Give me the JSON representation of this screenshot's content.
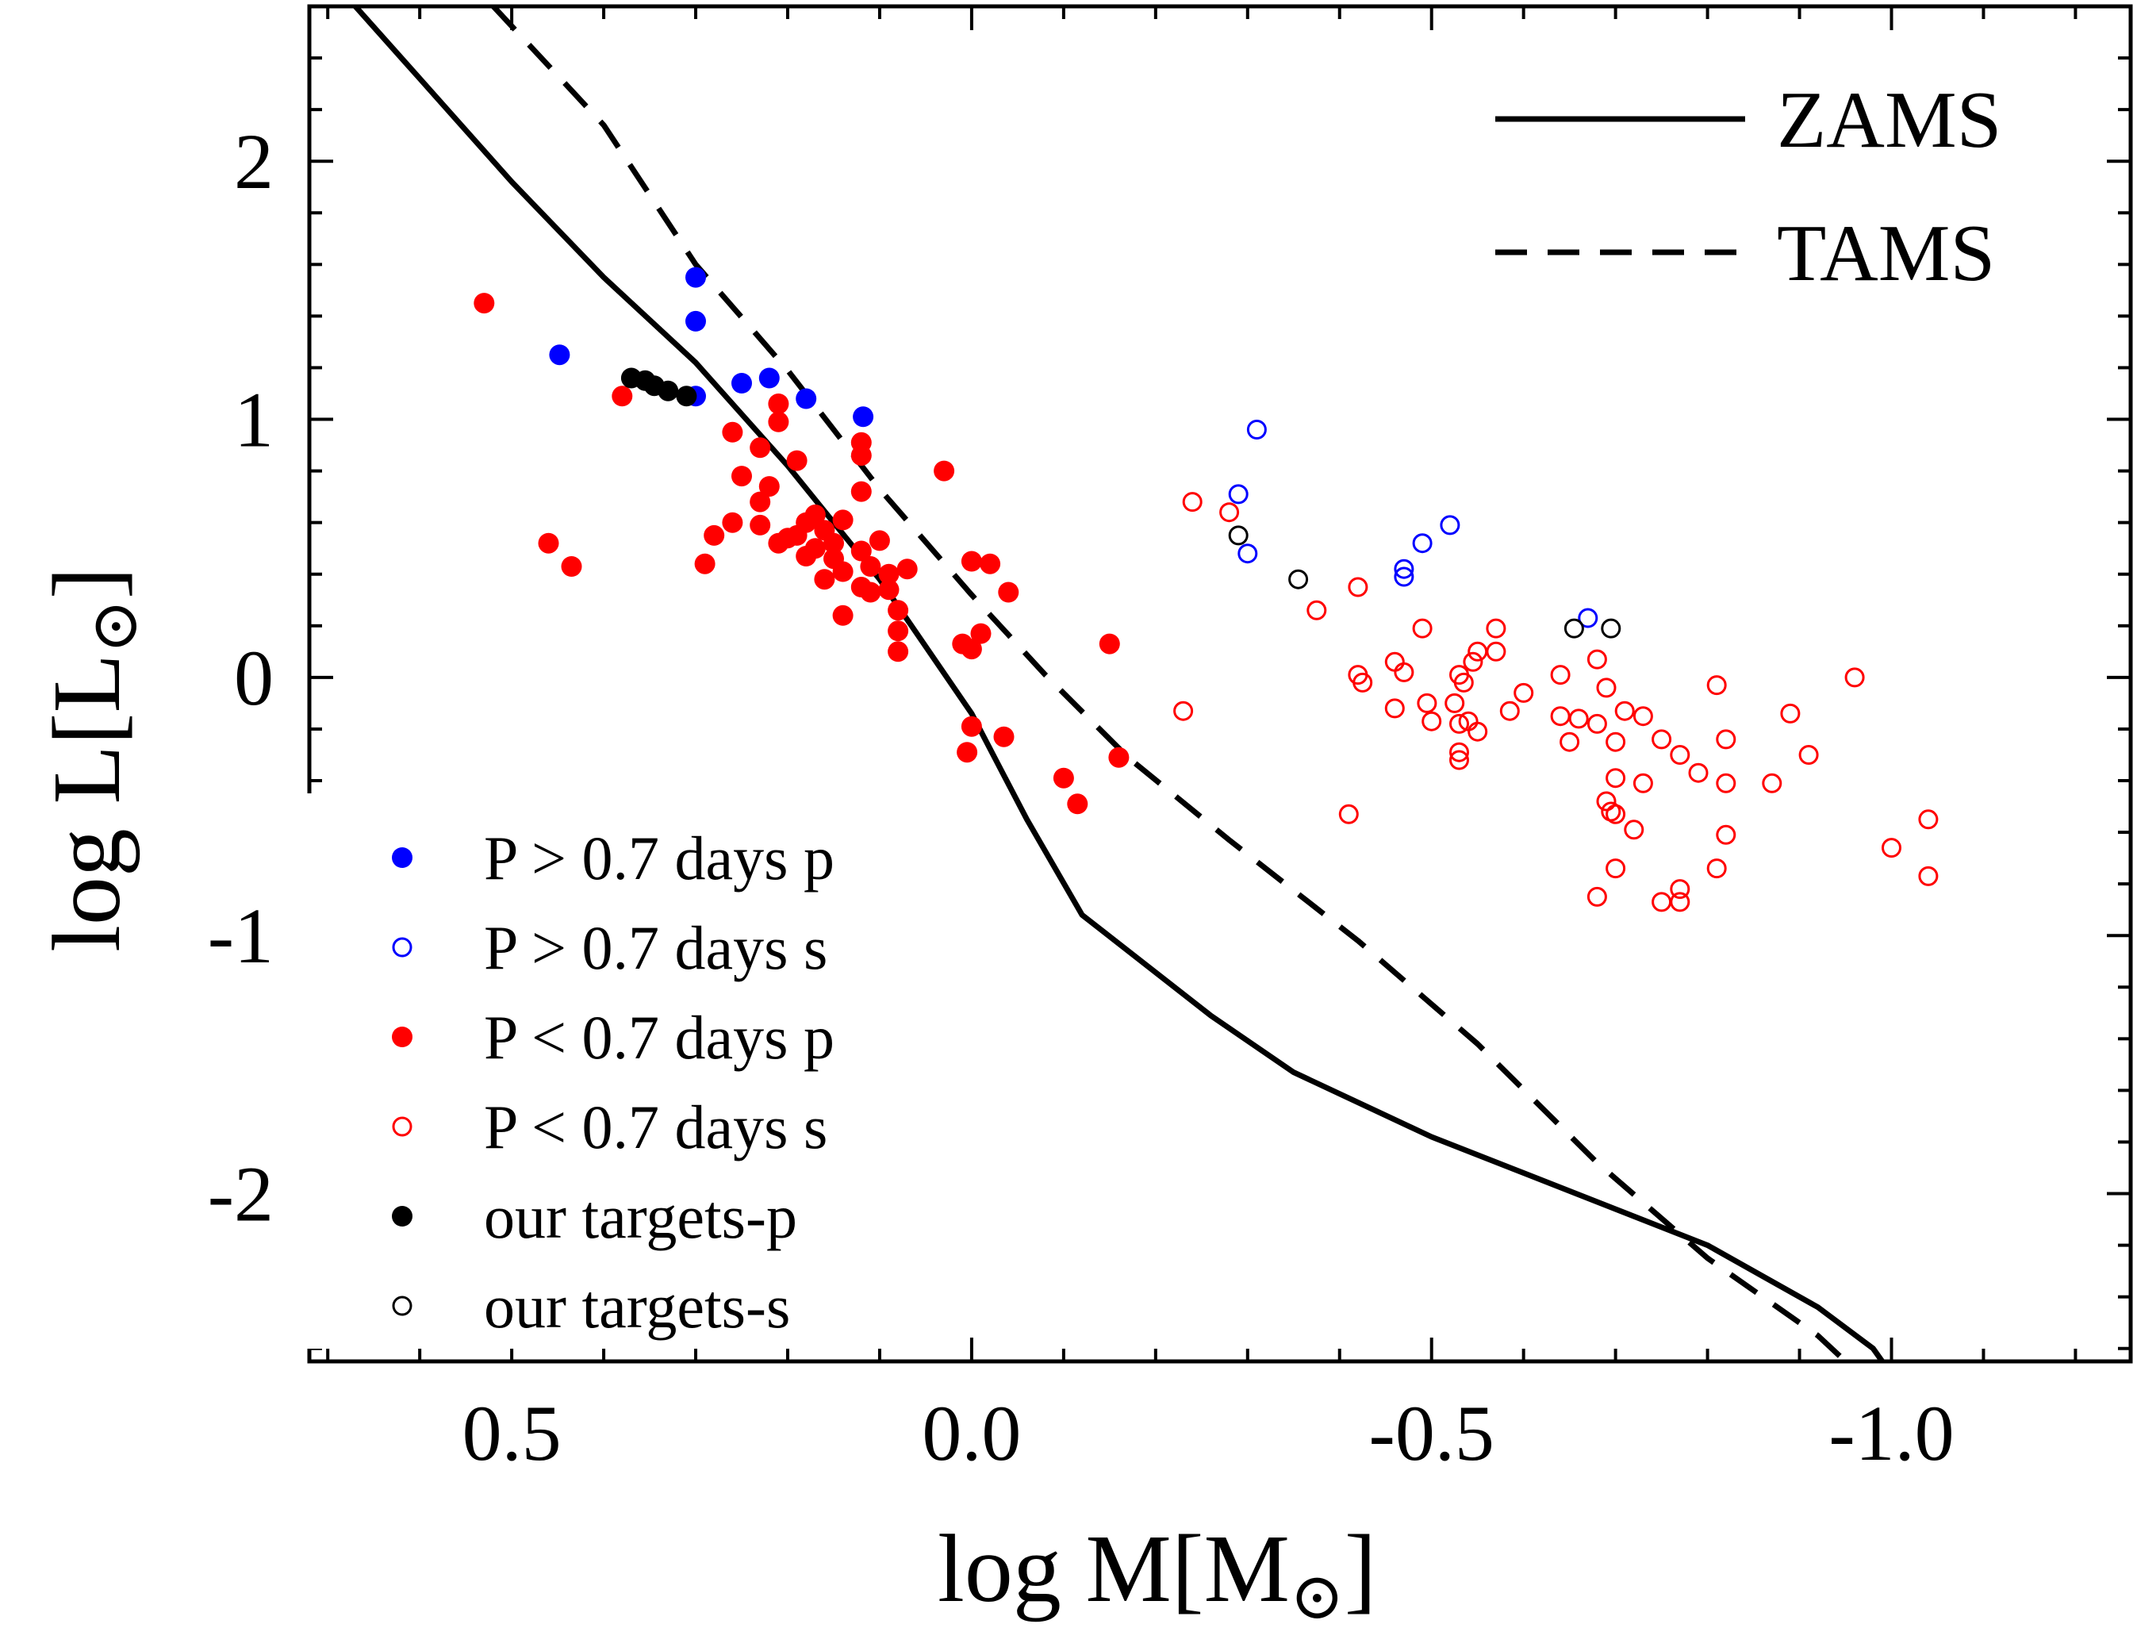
{
  "chart_data": {
    "type": "scatter",
    "title": "",
    "xlabel": "log M[M",
    "xlabel_sub": "⊙",
    "xlabel_close": "]",
    "ylabel": "log L[L",
    "ylabel_sub": "⊙",
    "ylabel_close": "]",
    "xlim": [
      0.72,
      -1.26
    ],
    "ylim": [
      -2.65,
      2.6
    ],
    "x_ticks": [
      0.5,
      0.0,
      -0.5,
      -1.0
    ],
    "x_tick_labels": [
      "0.5",
      "0.0",
      "-0.5",
      "-1.0"
    ],
    "y_ticks": [
      2,
      1,
      0,
      -1,
      -2
    ],
    "y_tick_labels": [
      "2",
      "1",
      "0",
      "-1",
      "-2"
    ],
    "lines": [
      {
        "name": "ZAMS",
        "style": "solid",
        "points": [
          [
            0.67,
            2.6
          ],
          [
            0.6,
            2.32
          ],
          [
            0.5,
            1.92
          ],
          [
            0.4,
            1.55
          ],
          [
            0.3,
            1.22
          ],
          [
            0.2,
            0.82
          ],
          [
            0.1,
            0.38
          ],
          [
            0.0,
            -0.14
          ],
          [
            -0.06,
            -0.55
          ],
          [
            -0.12,
            -0.92
          ],
          [
            -0.26,
            -1.31
          ],
          [
            -0.35,
            -1.53
          ],
          [
            -0.5,
            -1.78
          ],
          [
            -0.6,
            -1.92
          ],
          [
            -0.6,
            -1.92
          ],
          [
            -0.8,
            -2.2
          ],
          [
            -0.92,
            -2.44
          ],
          [
            -0.98,
            -2.6
          ],
          [
            -0.99,
            -2.65
          ]
        ]
      },
      {
        "name": "TAMS",
        "style": "dashed",
        "points": [
          [
            0.52,
            2.6
          ],
          [
            0.4,
            2.14
          ],
          [
            0.3,
            1.6
          ],
          [
            0.2,
            1.19
          ],
          [
            0.1,
            0.73
          ],
          [
            0.0,
            0.32
          ],
          [
            -0.08,
            0.01
          ],
          [
            -0.17,
            -0.31
          ],
          [
            -0.28,
            -0.63
          ],
          [
            -0.42,
            -1.02
          ],
          [
            -0.55,
            -1.42
          ],
          [
            -0.68,
            -1.88
          ],
          [
            -0.8,
            -2.25
          ],
          [
            -0.92,
            -2.55
          ],
          [
            -0.95,
            -2.65
          ]
        ]
      }
    ],
    "series": [
      {
        "name": "P > 0.7 days p",
        "color": "#0000ff",
        "filled": true,
        "points": [
          [
            0.3,
            1.55
          ],
          [
            0.3,
            1.38
          ],
          [
            0.448,
            1.25
          ],
          [
            0.3,
            1.09
          ],
          [
            0.25,
            1.14
          ],
          [
            0.22,
            1.16
          ],
          [
            0.18,
            1.08
          ],
          [
            0.118,
            1.01
          ]
        ]
      },
      {
        "name": "P > 0.7 days s",
        "color": "#0000ff",
        "filled": false,
        "points": [
          [
            -0.31,
            0.96
          ],
          [
            -0.29,
            0.71
          ],
          [
            -0.3,
            0.48
          ],
          [
            -0.47,
            0.42
          ],
          [
            -0.49,
            0.52
          ],
          [
            -0.52,
            0.59
          ],
          [
            -0.47,
            0.39
          ],
          [
            -0.67,
            0.23
          ]
        ]
      },
      {
        "name": "P < 0.7 days p",
        "color": "#ff0000",
        "filled": true,
        "points": [
          [
            0.53,
            1.45
          ],
          [
            0.38,
            1.09
          ],
          [
            0.21,
            1.06
          ],
          [
            0.21,
            0.99
          ],
          [
            0.26,
            0.95
          ],
          [
            0.12,
            0.91
          ],
          [
            0.23,
            0.89
          ],
          [
            0.12,
            0.86
          ],
          [
            0.19,
            0.84
          ],
          [
            0.25,
            0.78
          ],
          [
            0.03,
            0.8
          ],
          [
            0.22,
            0.74
          ],
          [
            0.12,
            0.72
          ],
          [
            0.23,
            0.68
          ],
          [
            0.17,
            0.63
          ],
          [
            0.14,
            0.61
          ],
          [
            0.18,
            0.6
          ],
          [
            0.26,
            0.6
          ],
          [
            0.23,
            0.59
          ],
          [
            0.16,
            0.57
          ],
          [
            0.19,
            0.55
          ],
          [
            0.2,
            0.54
          ],
          [
            0.28,
            0.55
          ],
          [
            0.21,
            0.52
          ],
          [
            0.1,
            0.53
          ],
          [
            0.15,
            0.52
          ],
          [
            0.17,
            0.5
          ],
          [
            0.12,
            0.49
          ],
          [
            0.18,
            0.47
          ],
          [
            0.15,
            0.46
          ],
          [
            0.0,
            0.45
          ],
          [
            -0.02,
            0.44
          ],
          [
            0.29,
            0.44
          ],
          [
            0.14,
            0.41
          ],
          [
            0.11,
            0.43
          ],
          [
            0.07,
            0.42
          ],
          [
            0.09,
            0.4
          ],
          [
            0.16,
            0.38
          ],
          [
            0.46,
            0.52
          ],
          [
            0.435,
            0.43
          ],
          [
            0.12,
            0.35
          ],
          [
            0.09,
            0.34
          ],
          [
            0.11,
            0.33
          ],
          [
            -0.04,
            0.33
          ],
          [
            0.08,
            0.26
          ],
          [
            0.14,
            0.24
          ],
          [
            0.08,
            0.18
          ],
          [
            -0.01,
            0.17
          ],
          [
            0.01,
            0.13
          ],
          [
            -0.15,
            0.13
          ],
          [
            0.0,
            0.11
          ],
          [
            0.08,
            0.1
          ],
          [
            0.0,
            -0.19
          ],
          [
            -0.035,
            -0.23
          ],
          [
            0.005,
            -0.29
          ],
          [
            -0.16,
            -0.31
          ],
          [
            -0.1,
            -0.39
          ],
          [
            -0.115,
            -0.49
          ]
        ]
      },
      {
        "name": "P < 0.7 days s",
        "color": "#ff0000",
        "filled": false,
        "points": [
          [
            -0.24,
            0.68
          ],
          [
            -0.28,
            0.64
          ],
          [
            -0.42,
            0.35
          ],
          [
            -0.375,
            0.26
          ],
          [
            -0.49,
            0.19
          ],
          [
            -0.57,
            0.19
          ],
          [
            -0.55,
            0.1
          ],
          [
            -0.57,
            0.1
          ],
          [
            -0.545,
            0.06
          ],
          [
            -0.46,
            0.06
          ],
          [
            -0.47,
            0.02
          ],
          [
            -0.53,
            0.01
          ],
          [
            -0.42,
            0.01
          ],
          [
            -0.64,
            0.01
          ],
          [
            -0.96,
            0.0
          ],
          [
            -0.425,
            -0.02
          ],
          [
            -0.535,
            -0.02
          ],
          [
            -0.81,
            -0.03
          ],
          [
            -0.6,
            -0.06
          ],
          [
            -0.69,
            -0.04
          ],
          [
            -0.68,
            0.07
          ],
          [
            -0.495,
            -0.1
          ],
          [
            -0.525,
            -0.1
          ],
          [
            -0.585,
            -0.13
          ],
          [
            -0.71,
            -0.13
          ],
          [
            -0.23,
            -0.13
          ],
          [
            -0.46,
            -0.12
          ],
          [
            -0.54,
            -0.17
          ],
          [
            -0.73,
            -0.15
          ],
          [
            -0.89,
            -0.14
          ],
          [
            -0.64,
            -0.15
          ],
          [
            -0.5,
            -0.17
          ],
          [
            -0.53,
            -0.18
          ],
          [
            -0.66,
            -0.16
          ],
          [
            -0.68,
            -0.18
          ],
          [
            -0.55,
            -0.21
          ],
          [
            -0.7,
            -0.25
          ],
          [
            -0.75,
            -0.24
          ],
          [
            -0.82,
            -0.24
          ],
          [
            -0.65,
            -0.25
          ],
          [
            -0.53,
            -0.29
          ],
          [
            -0.77,
            -0.3
          ],
          [
            -0.91,
            -0.3
          ],
          [
            -0.53,
            -0.32
          ],
          [
            -0.79,
            -0.37
          ],
          [
            -0.73,
            -0.41
          ],
          [
            -0.82,
            -0.41
          ],
          [
            -0.87,
            -0.41
          ],
          [
            -0.7,
            -0.39
          ],
          [
            -0.69,
            -0.48
          ],
          [
            -0.695,
            -0.52
          ],
          [
            -0.7,
            -0.53
          ],
          [
            -0.41,
            -0.53
          ],
          [
            -0.72,
            -0.59
          ],
          [
            -0.82,
            -0.61
          ],
          [
            -1.04,
            -0.55
          ],
          [
            -1.0,
            -0.66
          ],
          [
            -0.7,
            -0.74
          ],
          [
            -0.81,
            -0.74
          ],
          [
            -1.04,
            -0.77
          ],
          [
            -0.77,
            -0.82
          ],
          [
            -0.68,
            -0.85
          ],
          [
            -0.75,
            -0.87
          ],
          [
            -0.77,
            -0.87
          ]
        ]
      },
      {
        "name": "our targets-p",
        "color": "#000000",
        "filled": true,
        "points": [
          [
            0.37,
            1.16
          ],
          [
            0.355,
            1.15
          ],
          [
            0.345,
            1.13
          ],
          [
            0.33,
            1.11
          ],
          [
            0.31,
            1.09
          ]
        ]
      },
      {
        "name": "our targets-s",
        "color": "#000000",
        "filled": false,
        "points": [
          [
            -0.29,
            0.55
          ],
          [
            -0.355,
            0.38
          ],
          [
            -0.655,
            0.19
          ],
          [
            -0.695,
            0.19
          ]
        ]
      }
    ],
    "legend_position": "bottom-left",
    "line_legend_position": "top-right"
  }
}
